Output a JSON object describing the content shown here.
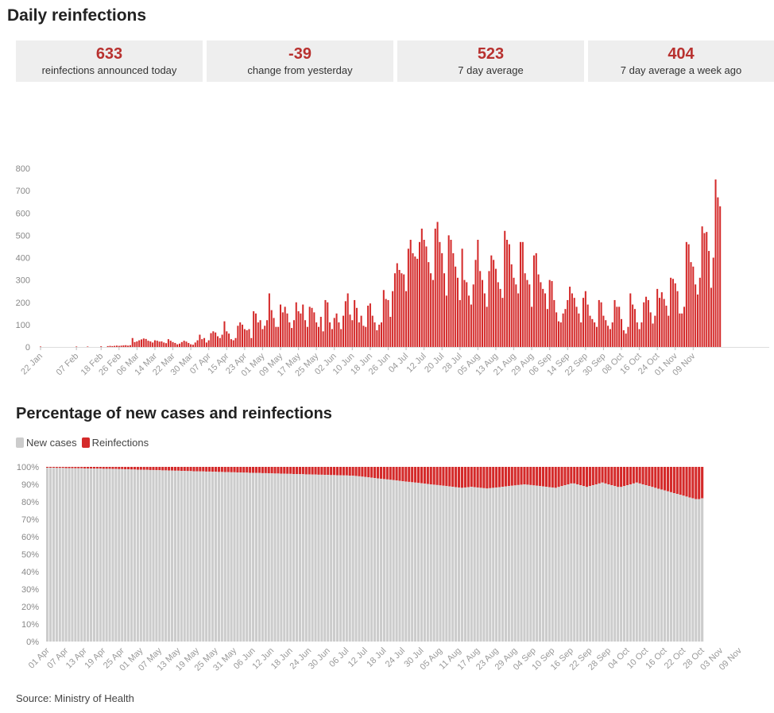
{
  "page": {
    "title": "Daily reinfections",
    "source": "Source: Ministry of Health"
  },
  "stats": [
    {
      "value": "633",
      "label": "reinfections announced today"
    },
    {
      "value": "-39",
      "label": "change from yesterday"
    },
    {
      "value": "523",
      "label": "7 day average"
    },
    {
      "value": "404",
      "label": "7 day average a week ago"
    }
  ],
  "colors": {
    "accent": "#b8312f",
    "bar_red": "#d42a2a",
    "bar_grey": "#cccccc",
    "stat_bg": "#eeeeee"
  },
  "chart_data": [
    {
      "type": "bar",
      "title": "",
      "xlabel": "",
      "ylabel": "",
      "ylim": [
        0,
        800
      ],
      "yticks": [
        0,
        100,
        200,
        300,
        400,
        500,
        600,
        700,
        800
      ],
      "grid": false,
      "x_start": "2022-01-22",
      "x_ticks": [
        "22 Jan",
        "07 Feb",
        "18 Feb",
        "26 Feb",
        "06 Mar",
        "14 Mar",
        "22 Mar",
        "30 Mar",
        "07 Apr",
        "15 Apr",
        "23 Apr",
        "01 May",
        "09 May",
        "17 May",
        "25 May",
        "02 Jun",
        "10 Jun",
        "18 Jun",
        "26 Jun",
        "04 Jul",
        "12 Jul",
        "20 Jul",
        "28 Jul",
        "05 Aug",
        "13 Aug",
        "21 Aug",
        "29 Aug",
        "06 Sep",
        "14 Sep",
        "22 Sep",
        "30 Sep",
        "08 Oct",
        "16 Oct",
        "24 Oct",
        "01 Nov",
        "09 Nov"
      ],
      "series": [
        {
          "name": "",
          "color": "#d42a2a",
          "values": [
            2,
            0,
            0,
            0,
            0,
            0,
            0,
            0,
            0,
            0,
            0,
            0,
            0,
            0,
            0,
            0,
            2,
            0,
            0,
            0,
            0,
            2,
            0,
            0,
            0,
            0,
            0,
            3,
            0,
            0,
            4,
            5,
            4,
            5,
            6,
            5,
            6,
            7,
            8,
            6,
            8,
            40,
            22,
            25,
            30,
            34,
            38,
            36,
            28,
            25,
            20,
            30,
            28,
            24,
            25,
            20,
            17,
            35,
            28,
            22,
            18,
            12,
            15,
            22,
            28,
            24,
            18,
            12,
            10,
            20,
            30,
            55,
            35,
            40,
            20,
            30,
            62,
            70,
            65,
            48,
            40,
            55,
            115,
            70,
            60,
            35,
            30,
            40,
            95,
            110,
            100,
            80,
            75,
            80,
            40,
            160,
            150,
            110,
            120,
            80,
            95,
            120,
            240,
            165,
            130,
            90,
            90,
            190,
            155,
            180,
            150,
            110,
            85,
            120,
            200,
            160,
            150,
            190,
            120,
            90,
            180,
            175,
            155,
            110,
            90,
            135,
            70,
            210,
            200,
            110,
            80,
            130,
            150,
            110,
            80,
            140,
            205,
            240,
            145,
            120,
            210,
            175,
            110,
            140,
            95,
            90,
            185,
            195,
            140,
            110,
            75,
            100,
            110,
            255,
            215,
            210,
            135,
            250,
            330,
            375,
            345,
            330,
            325,
            250,
            440,
            480,
            420,
            405,
            395,
            470,
            530,
            480,
            450,
            380,
            330,
            300,
            530,
            560,
            470,
            420,
            330,
            230,
            500,
            480,
            420,
            360,
            310,
            210,
            440,
            300,
            290,
            230,
            190,
            280,
            390,
            480,
            340,
            300,
            240,
            180,
            340,
            410,
            390,
            350,
            290,
            260,
            220,
            520,
            480,
            460,
            370,
            310,
            280,
            240,
            470,
            470,
            330,
            300,
            280,
            180,
            410,
            420,
            325,
            290,
            260,
            240,
            170,
            300,
            295,
            210,
            155,
            115,
            110,
            150,
            170,
            210,
            270,
            240,
            220,
            180,
            150,
            110,
            220,
            250,
            190,
            140,
            125,
            110,
            90,
            210,
            200,
            140,
            120,
            95,
            80,
            110,
            210,
            180,
            180,
            125,
            75,
            60,
            90,
            240,
            190,
            170,
            110,
            80,
            110,
            200,
            225,
            210,
            155,
            105,
            140,
            260,
            220,
            245,
            215,
            185,
            140,
            310,
            305,
            285,
            250,
            150,
            150,
            180,
            470,
            460,
            380,
            360,
            280,
            235,
            310,
            540,
            510,
            515,
            430,
            265,
            400,
            750,
            670,
            630
          ]
        }
      ]
    },
    {
      "type": "bar",
      "stacked": true,
      "title": "Percentage of new cases and reinfections",
      "xlabel": "",
      "ylabel": "",
      "ylim": [
        0,
        100
      ],
      "yticks": [
        "0%",
        "10%",
        "20%",
        "30%",
        "40%",
        "50%",
        "60%",
        "70%",
        "80%",
        "90%",
        "100%"
      ],
      "grid": false,
      "legend": {
        "placement": "top-left",
        "items": [
          {
            "label": "New cases",
            "color": "#cccccc"
          },
          {
            "label": "Reinfections",
            "color": "#d42a2a"
          }
        ]
      },
      "x_start": "2022-04-01",
      "x_ticks": [
        "01 Apr",
        "07 Apr",
        "13 Apr",
        "19 Apr",
        "25 Apr",
        "01 May",
        "07 May",
        "13 May",
        "19 May",
        "25 May",
        "31 May",
        "06 Jun",
        "12 Jun",
        "18 Jun",
        "24 Jun",
        "30 Jun",
        "06 Jul",
        "12 Jul",
        "18 Jul",
        "24 Jul",
        "30 Jul",
        "05 Aug",
        "11 Aug",
        "17 Aug",
        "23 Aug",
        "29 Aug",
        "04 Sep",
        "10 Sep",
        "16 Sep",
        "22 Sep",
        "28 Sep",
        "04 Oct",
        "10 Oct",
        "16 Oct",
        "22 Oct",
        "28 Oct",
        "03 Nov",
        "09 Nov"
      ],
      "reinfections_pct": [
        0.5,
        0.5,
        0.5,
        0.6,
        0.6,
        0.6,
        0.7,
        0.7,
        0.7,
        0.8,
        0.8,
        0.8,
        0.9,
        0.9,
        0.9,
        1.0,
        1.0,
        1.0,
        1.1,
        1.1,
        1.1,
        1.2,
        1.2,
        1.3,
        1.3,
        1.4,
        1.4,
        1.5,
        1.5,
        1.6,
        1.6,
        1.7,
        1.7,
        1.8,
        1.8,
        1.9,
        1.9,
        2.0,
        2.0,
        2.1,
        2.1,
        2.2,
        2.2,
        2.3,
        2.3,
        2.4,
        2.4,
        2.5,
        2.5,
        2.6,
        2.6,
        2.7,
        2.7,
        2.8,
        2.8,
        2.9,
        2.9,
        3.0,
        3.0,
        3.1,
        3.1,
        3.2,
        3.2,
        3.3,
        3.3,
        3.4,
        3.4,
        3.5,
        3.5,
        3.6,
        3.6,
        3.7,
        3.7,
        3.8,
        3.8,
        3.9,
        3.9,
        4.0,
        4.0,
        4.1,
        4.1,
        4.2,
        4.2,
        4.3,
        4.3,
        4.4,
        4.4,
        4.5,
        4.5,
        4.6,
        4.6,
        4.7,
        4.7,
        4.8,
        4.8,
        4.9,
        4.9,
        5.0,
        5.0,
        5.2,
        5.4,
        5.6,
        5.8,
        6.0,
        6.2,
        6.4,
        6.6,
        6.8,
        7.0,
        7.2,
        7.4,
        7.6,
        7.8,
        8.0,
        8.2,
        8.4,
        8.6,
        8.8,
        9.0,
        9.2,
        9.4,
        9.6,
        9.8,
        10.0,
        10.2,
        10.4,
        10.6,
        10.8,
        11.0,
        11.2,
        11.4,
        11.6,
        11.8,
        12.0,
        11.8,
        11.6,
        11.4,
        11.6,
        11.8,
        12.0,
        12.2,
        12.4,
        12.2,
        12.0,
        11.8,
        11.6,
        11.4,
        11.2,
        11.0,
        10.8,
        10.6,
        10.4,
        10.2,
        10.0,
        10.2,
        10.4,
        10.6,
        10.8,
        11.0,
        11.2,
        11.4,
        11.6,
        11.8,
        12.0,
        11.5,
        11.0,
        10.5,
        10.0,
        9.5,
        9.5,
        10.0,
        10.5,
        11.0,
        11.5,
        11.0,
        10.5,
        10.0,
        9.5,
        9.0,
        9.5,
        10.0,
        10.5,
        11.0,
        11.5,
        11.5,
        11.0,
        10.5,
        10.0,
        9.5,
        9.0,
        9.5,
        10.0,
        10.5,
        11.0,
        11.5,
        12.0,
        12.5,
        13.0,
        13.5,
        14.0,
        14.5,
        15.0,
        15.5,
        16.0,
        16.5,
        17.0,
        17.5,
        18.0,
        18.5,
        18.5,
        18.0
      ]
    }
  ]
}
